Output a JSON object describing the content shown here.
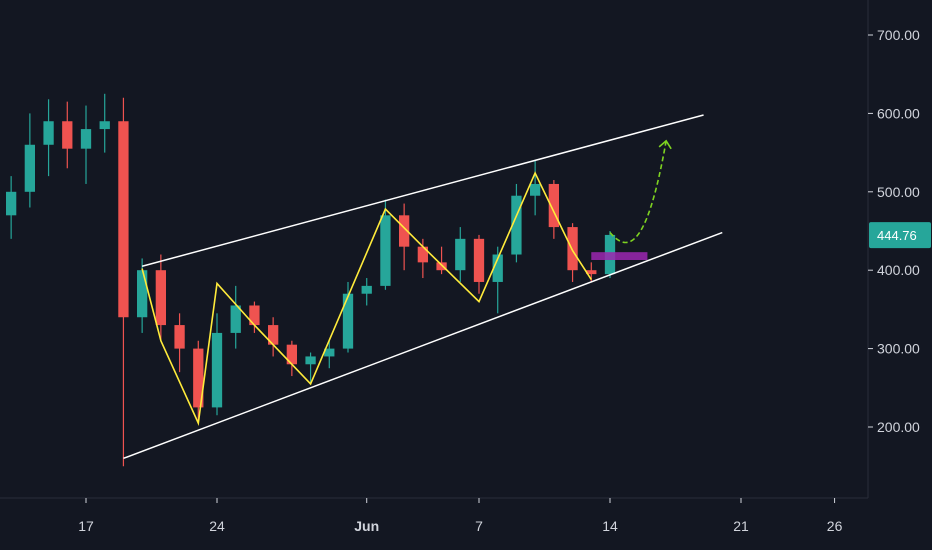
{
  "colors": {
    "background": "#131722",
    "up_candle": "#26a69a",
    "down_candle": "#ef5350",
    "channel_line": "#ffffff",
    "zigzag": "#ffeb3b",
    "projection": "#7ed321",
    "support_box": "#9c27b0",
    "axis_text": "#d1d4dc",
    "price_label": "#26a69a"
  },
  "chart_data": {
    "type": "candlestick",
    "title": "",
    "ylim": [
      100,
      760
    ],
    "y_ticks": [
      "200.00",
      "300.00",
      "400.00",
      "500.00",
      "600.00",
      "700.00"
    ],
    "x_ticks": [
      {
        "label": "17",
        "date": "May 17"
      },
      {
        "label": "24",
        "date": "May 24"
      },
      {
        "label": "Jun",
        "date": "Jun 1"
      },
      {
        "label": "7",
        "date": "Jun 7"
      },
      {
        "label": "14",
        "date": "Jun 14"
      },
      {
        "label": "21",
        "date": "Jun 21"
      },
      {
        "label": "26",
        "date": "Jun 26"
      }
    ],
    "last_price": "444.76",
    "candles": [
      {
        "date": "May 13",
        "o": 470,
        "h": 520,
        "l": 440,
        "c": 500
      },
      {
        "date": "May 14",
        "o": 500,
        "h": 600,
        "l": 480,
        "c": 560
      },
      {
        "date": "May 15",
        "o": 560,
        "h": 618,
        "l": 520,
        "c": 590
      },
      {
        "date": "May 16",
        "o": 590,
        "h": 615,
        "l": 530,
        "c": 555
      },
      {
        "date": "May 17",
        "o": 555,
        "h": 610,
        "l": 510,
        "c": 580
      },
      {
        "date": "May 18",
        "o": 580,
        "h": 625,
        "l": 550,
        "c": 590
      },
      {
        "date": "May 19",
        "o": 590,
        "h": 620,
        "l": 150,
        "c": 340
      },
      {
        "date": "May 20",
        "o": 340,
        "h": 415,
        "l": 320,
        "c": 400
      },
      {
        "date": "May 21",
        "o": 400,
        "h": 420,
        "l": 310,
        "c": 330
      },
      {
        "date": "May 22",
        "o": 330,
        "h": 345,
        "l": 270,
        "c": 300
      },
      {
        "date": "May 23",
        "o": 300,
        "h": 310,
        "l": 205,
        "c": 225
      },
      {
        "date": "May 24",
        "o": 225,
        "h": 345,
        "l": 215,
        "c": 320
      },
      {
        "date": "May 25",
        "o": 320,
        "h": 380,
        "l": 300,
        "c": 355
      },
      {
        "date": "May 26",
        "o": 355,
        "h": 360,
        "l": 320,
        "c": 330
      },
      {
        "date": "May 27",
        "o": 330,
        "h": 340,
        "l": 290,
        "c": 305
      },
      {
        "date": "May 28",
        "o": 305,
        "h": 310,
        "l": 265,
        "c": 280
      },
      {
        "date": "May 29",
        "o": 280,
        "h": 295,
        "l": 255,
        "c": 290
      },
      {
        "date": "May 30",
        "o": 290,
        "h": 310,
        "l": 275,
        "c": 300
      },
      {
        "date": "May 31",
        "o": 300,
        "h": 385,
        "l": 295,
        "c": 370
      },
      {
        "date": "Jun 1",
        "o": 370,
        "h": 390,
        "l": 355,
        "c": 380
      },
      {
        "date": "Jun 2",
        "o": 380,
        "h": 490,
        "l": 375,
        "c": 470
      },
      {
        "date": "Jun 3",
        "o": 470,
        "h": 485,
        "l": 400,
        "c": 430
      },
      {
        "date": "Jun 4",
        "o": 430,
        "h": 440,
        "l": 390,
        "c": 410
      },
      {
        "date": "Jun 5",
        "o": 410,
        "h": 430,
        "l": 395,
        "c": 400
      },
      {
        "date": "Jun 6",
        "o": 400,
        "h": 455,
        "l": 385,
        "c": 440
      },
      {
        "date": "Jun 7",
        "o": 440,
        "h": 445,
        "l": 370,
        "c": 385
      },
      {
        "date": "Jun 8",
        "o": 385,
        "h": 430,
        "l": 345,
        "c": 420
      },
      {
        "date": "Jun 9",
        "o": 420,
        "h": 510,
        "l": 410,
        "c": 495
      },
      {
        "date": "Jun 10",
        "o": 495,
        "h": 540,
        "l": 470,
        "c": 510
      },
      {
        "date": "Jun 11",
        "o": 510,
        "h": 515,
        "l": 440,
        "c": 455
      },
      {
        "date": "Jun 12",
        "o": 455,
        "h": 460,
        "l": 385,
        "c": 400
      },
      {
        "date": "Jun 13",
        "o": 400,
        "h": 410,
        "l": 385,
        "c": 395
      },
      {
        "date": "Jun 14",
        "o": 395,
        "h": 450,
        "l": 390,
        "c": 445
      }
    ],
    "channel": {
      "upper": [
        {
          "date": "May 20",
          "price": 405
        },
        {
          "date": "Jun 19",
          "price": 598
        }
      ],
      "lower": [
        {
          "date": "May 19",
          "price": 160
        },
        {
          "date": "Jun 20",
          "price": 448
        }
      ]
    },
    "zigzag": [
      {
        "date": "May 20",
        "price": 402
      },
      {
        "date": "May 21",
        "price": 310
      },
      {
        "date": "May 23",
        "price": 205
      },
      {
        "date": "May 24",
        "price": 383
      },
      {
        "date": "May 26",
        "price": 330
      },
      {
        "date": "May 29",
        "price": 255
      },
      {
        "date": "Jun 2",
        "price": 478
      },
      {
        "date": "Jun 4",
        "price": 430
      },
      {
        "date": "Jun 7",
        "price": 360
      },
      {
        "date": "Jun 10",
        "price": 524
      },
      {
        "date": "Jun 12",
        "price": 425
      },
      {
        "date": "Jun 13",
        "price": 388
      }
    ],
    "projection": [
      {
        "date": "Jun 14",
        "price": 448
      },
      {
        "date": "Jun 15",
        "price": 420
      },
      {
        "date": "Jun 16",
        "price": 430
      },
      {
        "date": "Jun 17",
        "price": 565
      }
    ],
    "support_zone": {
      "from": "Jun 13",
      "to": "Jun 16",
      "low": 413,
      "high": 423
    }
  }
}
